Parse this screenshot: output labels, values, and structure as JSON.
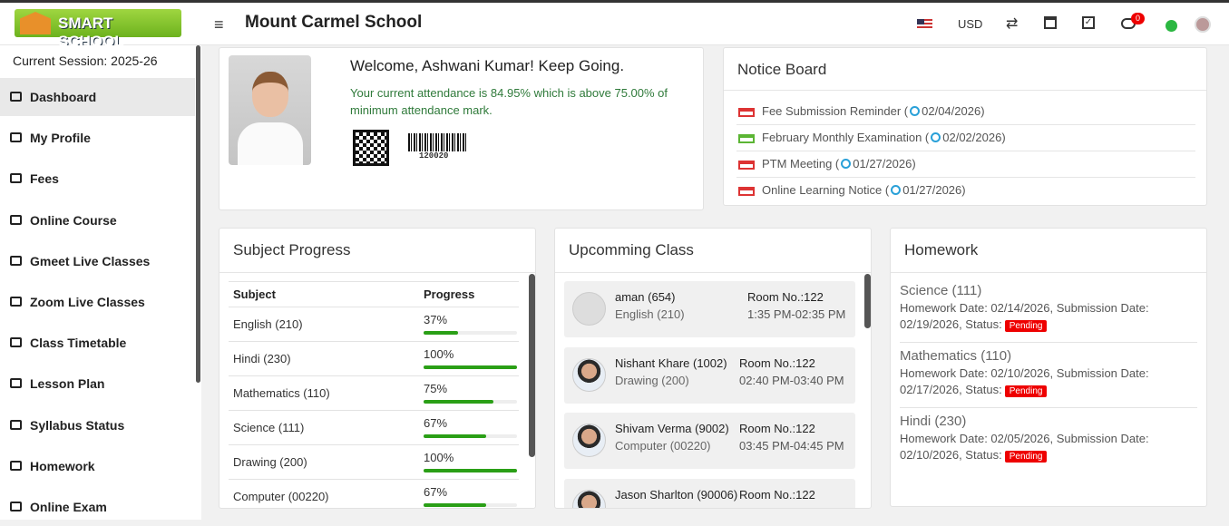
{
  "header": {
    "logo_text": "SMART SCHOOL",
    "school_name": "Mount Carmel School",
    "currency": "USD",
    "notification_count": "0"
  },
  "sidebar": {
    "session": "Current Session: 2025-26",
    "menu": [
      "Dashboard",
      "My Profile",
      "Fees",
      "Online Course",
      "Gmeet Live Classes",
      "Zoom Live Classes",
      "Class Timetable",
      "Lesson Plan",
      "Syllabus Status",
      "Homework",
      "Online Exam"
    ]
  },
  "welcome": {
    "title": "Welcome, Ashwani Kumar! Keep Going.",
    "attendance": "Your current attendance is 84.95% which is above 75.00% of minimum attendance mark.",
    "barcode": "120020"
  },
  "notice_board": {
    "title": "Notice Board",
    "items": [
      {
        "title": "Fee Submission Reminder (",
        "date": "02/04/2026)"
      },
      {
        "title": "February Monthly Examination (",
        "date": "02/02/2026)"
      },
      {
        "title": "PTM Meeting (",
        "date": "01/27/2026)"
      },
      {
        "title": "Online Learning Notice (",
        "date": "01/27/2026)"
      }
    ]
  },
  "subject_progress": {
    "title": "Subject Progress",
    "headers": [
      "Subject",
      "Progress"
    ],
    "rows": [
      {
        "subject": "English (210)",
        "progress": {
          "value": 37,
          "label": "37%"
        }
      },
      {
        "subject": "Hindi (230)",
        "progress": {
          "value": 100,
          "label": "100%"
        }
      },
      {
        "subject": "Mathematics (110)",
        "progress": {
          "value": 75,
          "label": "75%"
        }
      },
      {
        "subject": "Science (111)",
        "progress": {
          "value": 67,
          "label": "67%"
        }
      },
      {
        "subject": "Drawing (200)",
        "progress": {
          "value": 100,
          "label": "100%"
        }
      },
      {
        "subject": "Computer (00220)",
        "progress": {
          "value": 67,
          "label": "67%"
        }
      }
    ]
  },
  "upcoming_class": {
    "title": "Upcomming Class",
    "items": [
      {
        "teacher": "aman (654)",
        "subject": "English (210)",
        "room": "Room No.:122",
        "time": "1:35 PM-02:35 PM"
      },
      {
        "teacher": "Nishant Khare (1002)",
        "subject": "Drawing (200)",
        "room": "Room No.:122",
        "time": "02:40 PM-03:40 PM"
      },
      {
        "teacher": "Shivam Verma (9002)",
        "subject": "Computer (00220)",
        "room": "Room No.:122",
        "time": "03:45 PM-04:45 PM"
      },
      {
        "teacher": "Jason Sharlton (90006)",
        "room": "Room No.:122"
      }
    ]
  },
  "homework": {
    "title": "Homework",
    "items": [
      {
        "subject": "Science (111)",
        "details": "Homework Date: 02/14/2026, Submission Date: 02/19/2026, Status:",
        "status": "Pending"
      },
      {
        "subject": "Mathematics (110)",
        "details": "Homework Date: 02/10/2026, Submission Date: 02/17/2026, Status:",
        "status": "Pending"
      },
      {
        "subject": "Hindi (230)",
        "details": "Homework Date: 02/05/2026, Submission Date: 02/10/2026, Status:",
        "status": "Pending"
      }
    ]
  }
}
